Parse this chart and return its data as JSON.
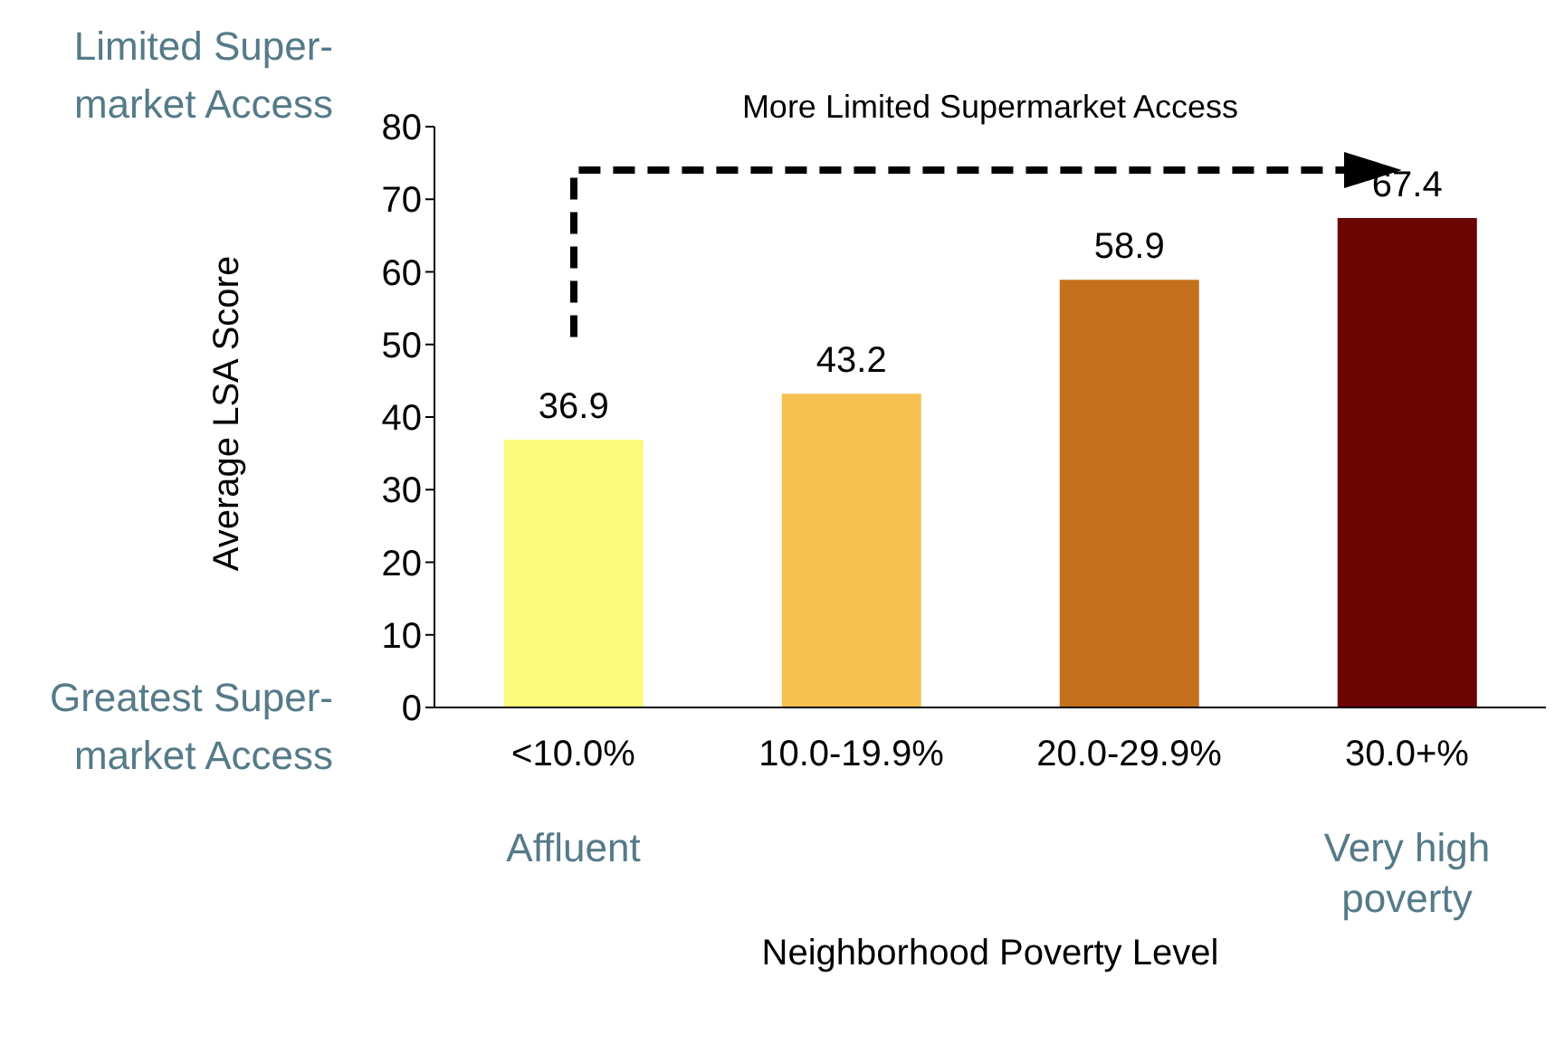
{
  "chart_data": {
    "type": "bar",
    "xlabel": "Neighborhood Poverty Level",
    "ylabel": "Average LSA Score",
    "categories": [
      "<10.0%",
      "10.0-19.9%",
      "20.0-29.9%",
      "30.0+%"
    ],
    "values": [
      36.9,
      43.2,
      58.9,
      67.4
    ],
    "colors": [
      "#fcfa7c",
      "#f6c150",
      "#c4701c",
      "#6b0604"
    ],
    "ylim": [
      0,
      80
    ],
    "yticks": [
      0,
      10,
      20,
      30,
      40,
      50,
      60,
      70,
      80
    ],
    "grid": false,
    "data_labels": true,
    "annotations": [
      "More Limited Supermarket Access",
      "Limited Super-market Access",
      "Greatest Super-market Access",
      "Affluent",
      "Very high poverty"
    ]
  }
}
